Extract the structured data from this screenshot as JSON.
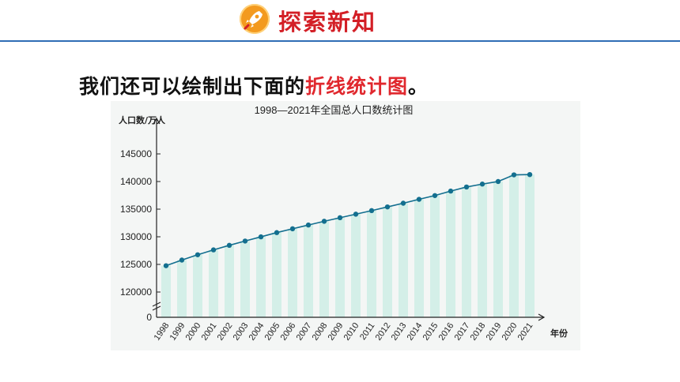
{
  "header": {
    "title": "探索新知",
    "icon": "rocket-icon",
    "accent": "#d31f26",
    "line_color": "#2f6db5"
  },
  "intro": {
    "text": "我们还可以绘制出下面的",
    "highlight": "折线统计图",
    "end": "。"
  },
  "chart_data": {
    "type": "line",
    "title": "1998—2021年全国总人口数统计图",
    "ylabel": "人口数/万人",
    "xlabel": "年份",
    "yticks": [
      "145000",
      "140000",
      "135000",
      "130000",
      "125000",
      "120000",
      "0"
    ],
    "ylim": [
      120000,
      145000
    ],
    "grid": false,
    "axis_break": true,
    "line_color": "#136f8f",
    "bar_color": "#b9eadc",
    "categories": [
      "1998",
      "1999",
      "2000",
      "2001",
      "2002",
      "2003",
      "2004",
      "2005",
      "2006",
      "2007",
      "2008",
      "2009",
      "2010",
      "2011",
      "2012",
      "2013",
      "2014",
      "2015",
      "2016",
      "2017",
      "2018",
      "2019",
      "2020",
      "2021"
    ],
    "series": [
      {
        "values": [
          124761,
          125786,
          126743,
          127627,
          128453,
          129227,
          129988,
          130756,
          131448,
          132129,
          132802,
          133450,
          134091,
          134735,
          135404,
          136072,
          136782,
          137462,
          138271,
          139008,
          139538,
          140005,
          141212,
          141260
        ]
      }
    ]
  }
}
